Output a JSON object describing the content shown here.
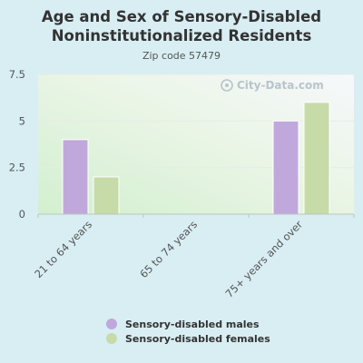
{
  "header": {
    "title_line1": "Age and Sex of Sensory-Disabled",
    "title_line2": "Noninstitutionalized Residents",
    "subtitle": "Zip code 57479"
  },
  "watermark": "City-Data.com",
  "chart_data": {
    "type": "bar",
    "title": "Age and Sex of Sensory-Disabled Noninstitutionalized Residents",
    "subtitle": "Zip code 57479",
    "categories": [
      "21 to 64 years",
      "65 to 74 years",
      "75+ years and over"
    ],
    "series": [
      {
        "name": "Sensory-disabled males",
        "color": "#c0a8dc",
        "values": [
          4,
          0,
          5
        ]
      },
      {
        "name": "Sensory-disabled females",
        "color": "#c6dba8",
        "values": [
          2,
          0,
          6
        ]
      }
    ],
    "ylim": [
      0,
      7.5
    ],
    "yticks": [
      0,
      2.5,
      5,
      7.5
    ],
    "ytick_labels": [
      "0",
      "2.5",
      "5",
      "7.5"
    ],
    "xlabel": "",
    "ylabel": "",
    "grid": true,
    "legend": "bottom"
  }
}
